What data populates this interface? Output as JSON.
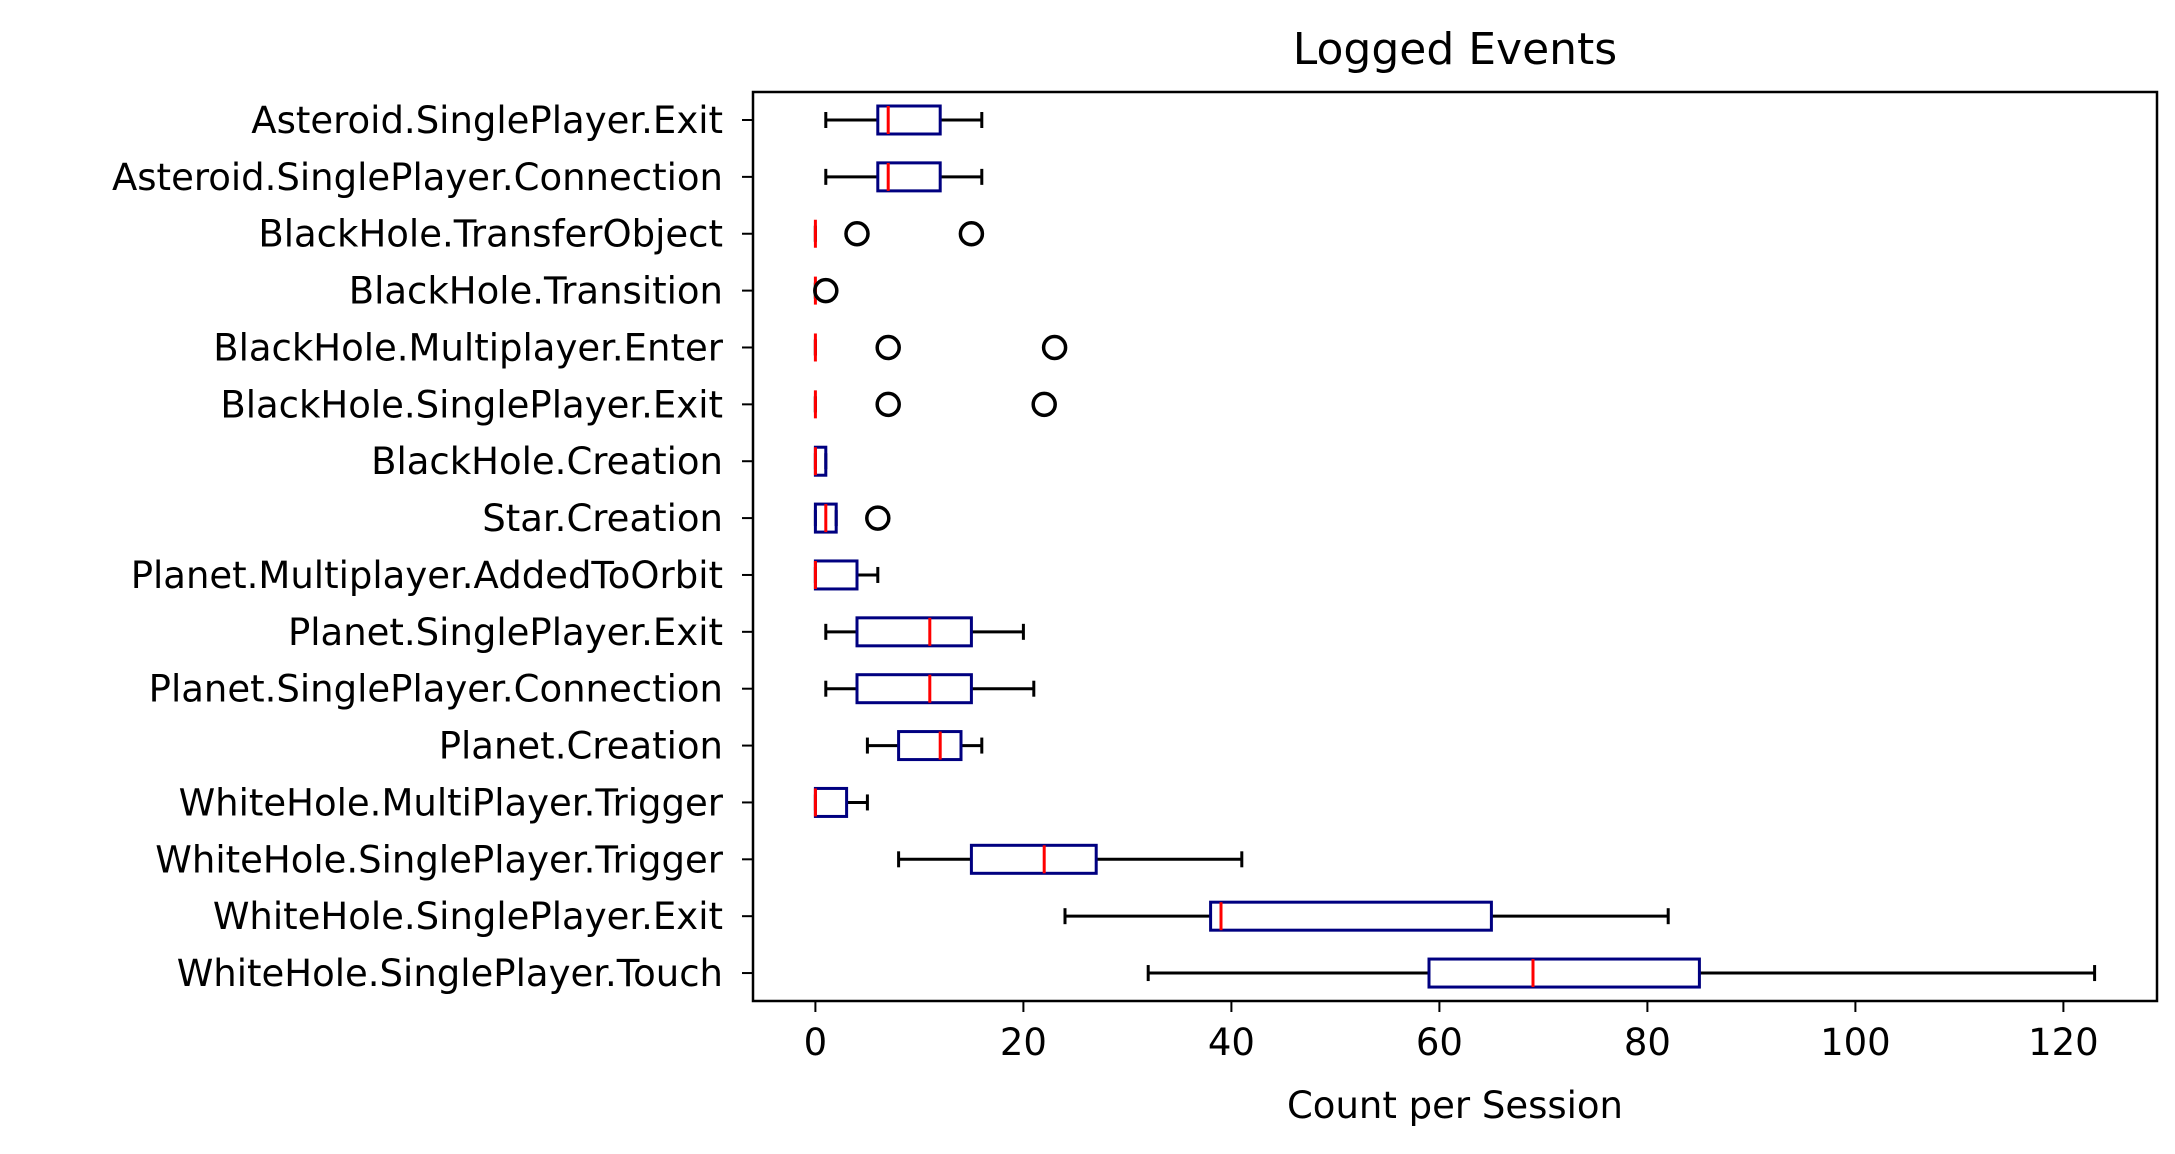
{
  "chart_data": {
    "type": "boxplot",
    "orientation": "horizontal",
    "title": "Logged Events",
    "xlabel": "Count per Session",
    "ylabel": "",
    "xlim": [
      -6,
      129
    ],
    "xticks": [
      0,
      20,
      40,
      60,
      80,
      100,
      120
    ],
    "grid": false,
    "colors": {
      "box": "#000080",
      "median": "#ff0000",
      "whisker": "#000000",
      "flier": "#000000"
    },
    "categories": [
      "Asteroid.SinglePlayer.Exit",
      "Asteroid.SinglePlayer.Connection",
      "BlackHole.TransferObject",
      "BlackHole.Transition",
      "BlackHole.Multiplayer.Enter",
      "BlackHole.SinglePlayer.Exit",
      "BlackHole.Creation",
      "Star.Creation",
      "Planet.Multiplayer.AddedToOrbit",
      "Planet.SinglePlayer.Exit",
      "Planet.SinglePlayer.Connection",
      "Planet.Creation",
      "WhiteHole.MultiPlayer.Trigger",
      "WhiteHole.SinglePlayer.Trigger",
      "WhiteHole.SinglePlayer.Exit",
      "WhiteHole.SinglePlayer.Touch"
    ],
    "boxes": [
      {
        "whislo": 1,
        "q1": 6,
        "med": 7,
        "q3": 12,
        "whishi": 16,
        "fliers": []
      },
      {
        "whislo": 1,
        "q1": 6,
        "med": 7,
        "q3": 12,
        "whishi": 16,
        "fliers": []
      },
      {
        "whislo": 0,
        "q1": 0,
        "med": 0,
        "q3": 0,
        "whishi": 0,
        "fliers": [
          4,
          15
        ]
      },
      {
        "whislo": 0,
        "q1": 0,
        "med": 0,
        "q3": 0,
        "whishi": 0,
        "fliers": [
          1
        ]
      },
      {
        "whislo": 0,
        "q1": 0,
        "med": 0,
        "q3": 0,
        "whishi": 0,
        "fliers": [
          7,
          23
        ]
      },
      {
        "whislo": 0,
        "q1": 0,
        "med": 0,
        "q3": 0,
        "whishi": 0,
        "fliers": [
          7,
          22
        ]
      },
      {
        "whislo": 0,
        "q1": 0,
        "med": 0,
        "q3": 1,
        "whishi": 1,
        "fliers": []
      },
      {
        "whislo": 0,
        "q1": 0,
        "med": 1,
        "q3": 2,
        "whishi": 2,
        "fliers": [
          6
        ]
      },
      {
        "whislo": 0,
        "q1": 0,
        "med": 0,
        "q3": 4,
        "whishi": 6,
        "fliers": []
      },
      {
        "whislo": 1,
        "q1": 4,
        "med": 11,
        "q3": 15,
        "whishi": 20,
        "fliers": []
      },
      {
        "whislo": 1,
        "q1": 4,
        "med": 11,
        "q3": 15,
        "whishi": 21,
        "fliers": []
      },
      {
        "whislo": 5,
        "q1": 8,
        "med": 12,
        "q3": 14,
        "whishi": 16,
        "fliers": []
      },
      {
        "whislo": 0,
        "q1": 0,
        "med": 0,
        "q3": 3,
        "whishi": 5,
        "fliers": []
      },
      {
        "whislo": 8,
        "q1": 15,
        "med": 22,
        "q3": 27,
        "whishi": 41,
        "fliers": []
      },
      {
        "whislo": 24,
        "q1": 38,
        "med": 39,
        "q3": 65,
        "whishi": 82,
        "fliers": []
      },
      {
        "whislo": 32,
        "q1": 59,
        "med": 69,
        "q3": 85,
        "whishi": 123,
        "fliers": []
      }
    ]
  }
}
